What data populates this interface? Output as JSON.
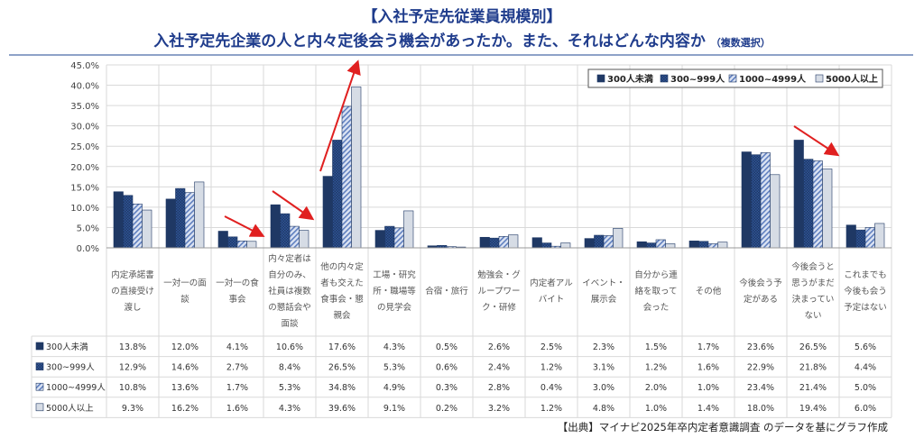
{
  "header": {
    "title": "【入社予定先従業員規模別】",
    "subtitle": "入社予定先企業の人と内々定後会う機会があったか。また、それはどんな内容か",
    "subtitle_note": "（複数選択）"
  },
  "source": "【出典】マイナビ2025年卒内定者意識調査 のデータを基にグラフ作成",
  "chart_data": {
    "type": "bar",
    "ylim": [
      0,
      45
    ],
    "yticks": [
      "0.0%",
      "5.0%",
      "10.0%",
      "15.0%",
      "20.0%",
      "25.0%",
      "30.0%",
      "35.0%",
      "40.0%",
      "45.0%"
    ],
    "legend_position": "top-right",
    "categories": [
      [
        "内定承諾書",
        "の直接受け",
        "渡し"
      ],
      [
        "一対一の面",
        "談"
      ],
      [
        "一対一の食",
        "事会"
      ],
      [
        "内々定者は",
        "自分のみ、",
        "社員は複数",
        "の懇話会や",
        "面談"
      ],
      [
        "他の内々定",
        "者も交えた",
        "食事会・懇",
        "親会"
      ],
      [
        "工場・研究",
        "所・職場等",
        "の見学会"
      ],
      [
        "合宿・旅行"
      ],
      [
        "勉強会・グ",
        "ループワー",
        "ク・研修"
      ],
      [
        "内定者アル",
        "バイト"
      ],
      [
        "イベント・",
        "展示会"
      ],
      [
        "自分から連",
        "絡を取って",
        "会った"
      ],
      [
        "その他"
      ],
      [
        "今後会う予",
        "定がある"
      ],
      [
        "今後会うと",
        "思うがまだ",
        "決まってい",
        "ない"
      ],
      [
        "これまでも",
        "今後も会う",
        "予定はない"
      ]
    ],
    "series": [
      {
        "name": "300人未満",
        "color": "#1f3864",
        "values": [
          13.8,
          12.0,
          4.1,
          10.6,
          17.6,
          4.3,
          0.5,
          2.6,
          2.5,
          2.3,
          1.5,
          1.7,
          23.6,
          26.5,
          5.6
        ]
      },
      {
        "name": "300~999人",
        "color": "#2f5597",
        "values": [
          12.9,
          14.6,
          2.7,
          8.4,
          26.5,
          5.3,
          0.6,
          2.4,
          1.2,
          3.1,
          1.2,
          1.6,
          22.9,
          21.8,
          4.4
        ]
      },
      {
        "name": "1000~4999人",
        "color": "#8faadc",
        "values": [
          10.8,
          13.6,
          1.7,
          5.3,
          34.8,
          4.9,
          0.3,
          2.8,
          0.4,
          3.0,
          2.0,
          1.0,
          23.4,
          21.4,
          5.0
        ]
      },
      {
        "name": "5000人以上",
        "color": "#d6dce5",
        "values": [
          9.3,
          16.2,
          1.6,
          4.3,
          39.6,
          9.1,
          0.2,
          3.2,
          1.2,
          4.8,
          1.0,
          1.4,
          18.0,
          19.4,
          6.0
        ]
      }
    ]
  }
}
